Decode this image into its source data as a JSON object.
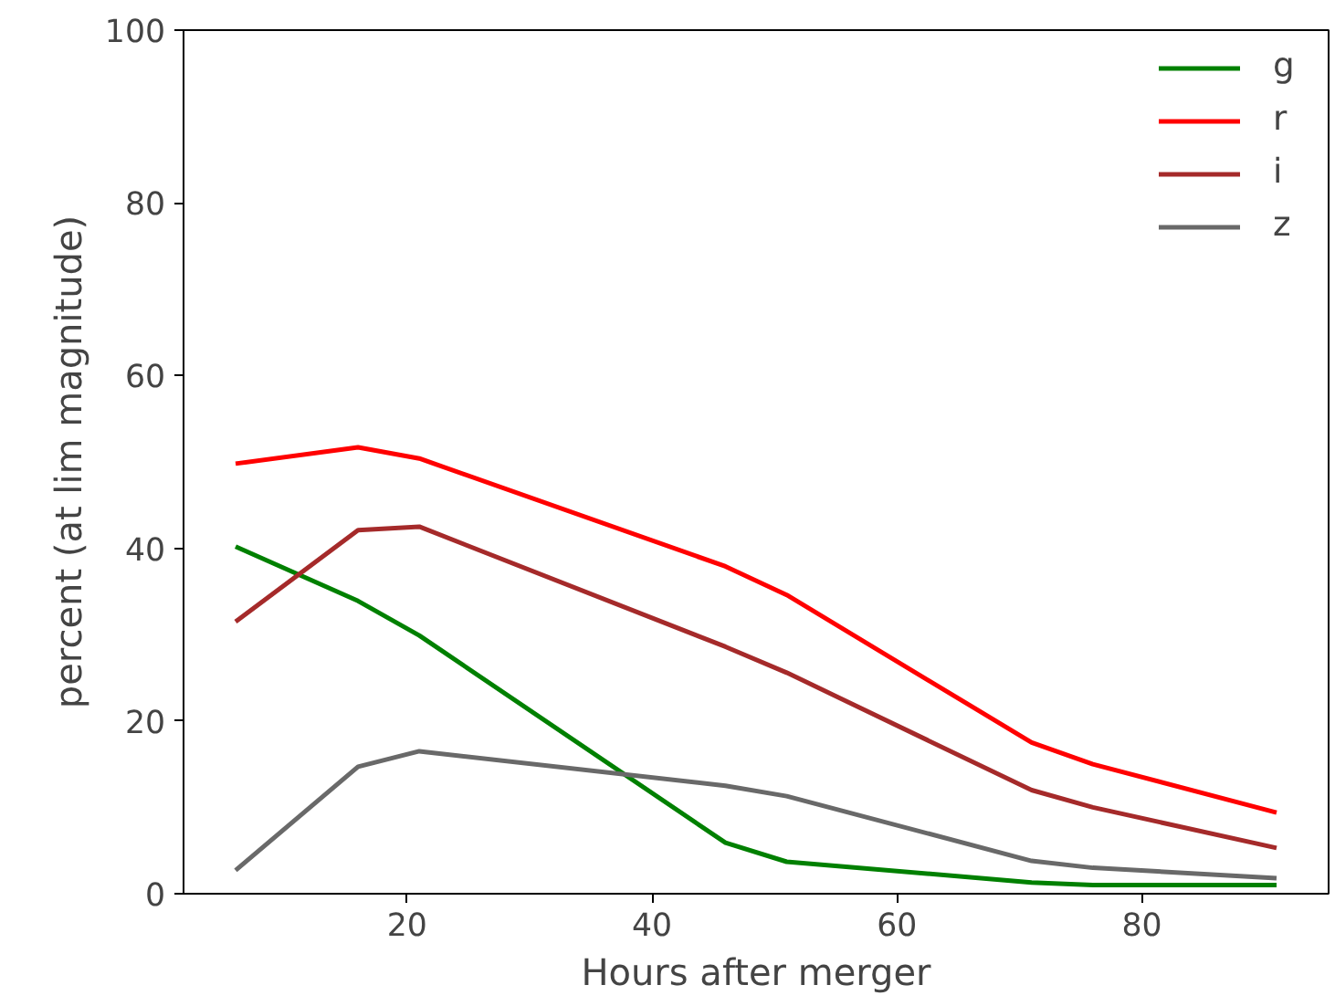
{
  "chart_data": {
    "type": "line",
    "xlabel": "Hours after merger",
    "ylabel": "percent (at lim magnitude)",
    "x": [
      6,
      16,
      21,
      46,
      51,
      71,
      76,
      91
    ],
    "series": [
      {
        "name": "g",
        "color": "#008000",
        "values": [
          40.2,
          33.9,
          29.9,
          5.9,
          3.7,
          1.3,
          1.0,
          1.0
        ]
      },
      {
        "name": "r",
        "color": "#ff0000",
        "values": [
          49.8,
          51.7,
          50.4,
          37.9,
          34.6,
          17.5,
          15.0,
          9.4
        ]
      },
      {
        "name": "i",
        "color": "#a52a2a",
        "values": [
          31.5,
          42.1,
          42.5,
          28.6,
          25.6,
          12.0,
          10.0,
          5.3
        ]
      },
      {
        "name": "z",
        "color": "#696969",
        "values": [
          2.7,
          14.7,
          16.5,
          12.5,
          11.3,
          3.8,
          3.0,
          1.8
        ]
      }
    ],
    "xlim": [
      1.75,
      95.25
    ],
    "ylim": [
      0,
      100
    ],
    "xticks": [
      20,
      40,
      60,
      80
    ],
    "yticks": [
      0,
      20,
      40,
      60,
      80,
      100
    ],
    "grid": false,
    "legend": "top right",
    "marker": "none",
    "line_style": "solid"
  }
}
